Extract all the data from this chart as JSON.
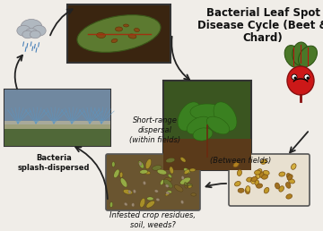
{
  "title_line1": "Bacterial Leaf Spot",
  "title_line2": "Disease Cycle (Beet &",
  "title_line3": "Chard)",
  "title_fontsize": 8.5,
  "title_fontweight": "bold",
  "label_short_range": "Short-range\ndispersal\n(within fields)",
  "label_bacteria": "Bacteria\nsplash-dispersed",
  "label_infested": "Infested crop residues,\nsoil, weeds?",
  "label_between": "(Between fields)",
  "bg_color": "#f0ede8",
  "arrow_color": "#222222",
  "text_color": "#111111",
  "label_fontsize": 6.0
}
